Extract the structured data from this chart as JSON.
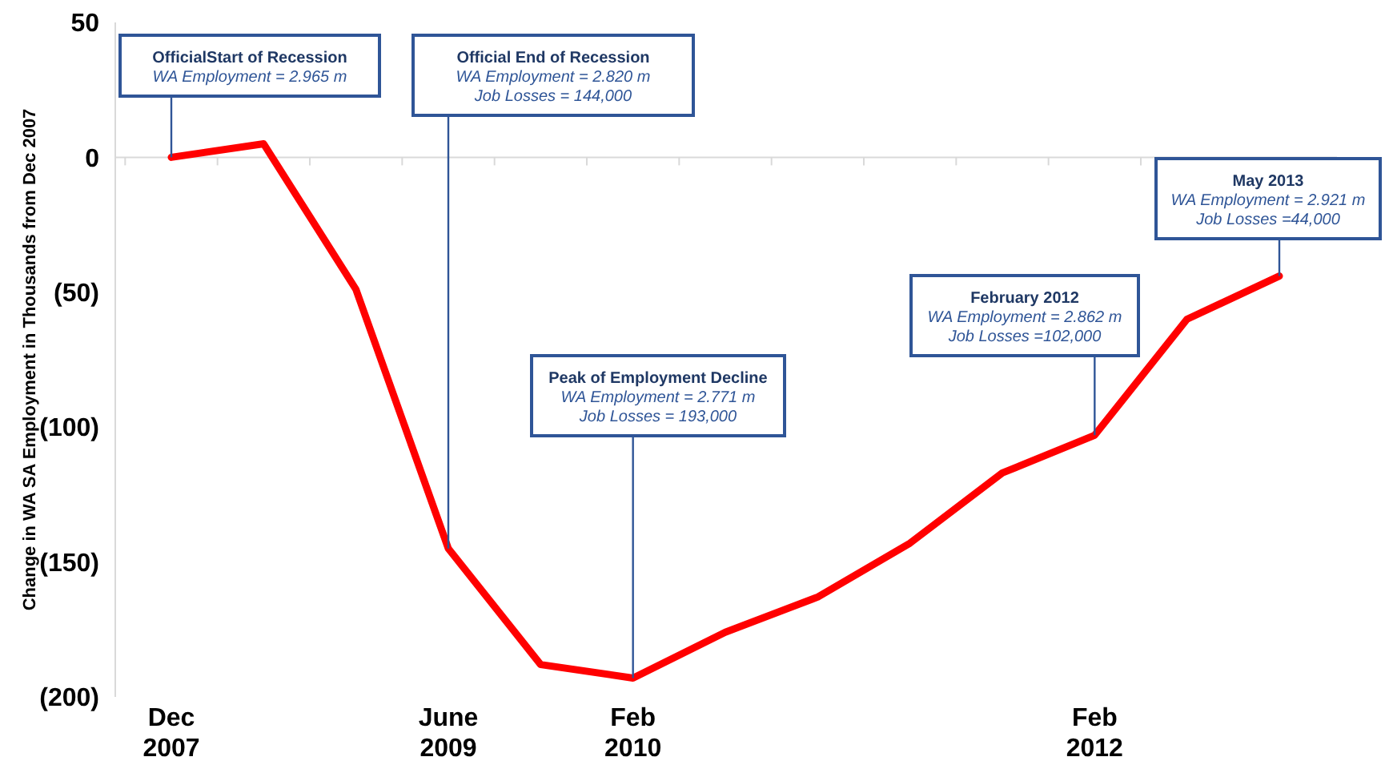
{
  "chart_data": {
    "type": "line",
    "ylabel": "Change in WA SA Employment in Thousands from Dec 2007",
    "categories": [
      "Dec 2007",
      null,
      null,
      "June 2009",
      null,
      "Feb 2010",
      null,
      null,
      null,
      null,
      "Feb 2012",
      null,
      null
    ],
    "series": [
      {
        "color": "#ff0000",
        "values": [
          0,
          5,
          -49,
          -145,
          -188,
          -193,
          -176,
          -163,
          -143,
          -117,
          -103,
          -60,
          -44
        ]
      }
    ],
    "ylim": [
      -200,
      50
    ],
    "yticks": [
      50,
      0,
      {
        "value": -50,
        "label": "(50)"
      },
      {
        "value": -100,
        "label": "(100)"
      },
      {
        "value": -150,
        "label": "(150)"
      },
      {
        "value": -200,
        "label": "(200)"
      }
    ],
    "marker": "none",
    "line_style": "solid",
    "annotations": [
      {
        "text": "OfficialStart  of Recession\nWA Employment = 2.965 m",
        "x": "Dec 2007",
        "y": 0
      },
      {
        "text": "Official  End of Recession\nWA Employment = 2.820 m\nJob Losses = 144,000",
        "x": "June 2009",
        "y": -145
      },
      {
        "text": "Peak of Employment  Decline\nWA Employment = 2.771 m\nJob Losses = 193,000",
        "x": "Feb 2010",
        "y": -193
      },
      {
        "text": "February 2012\nWA Employment = 2.862 m\nJob Losses =102,000",
        "x": "Feb 2012",
        "y": -103
      },
      {
        "text": "May 2013\nWA Employment = 2.921 m\nJob Losses =44,000",
        "y": -44
      }
    ]
  }
}
